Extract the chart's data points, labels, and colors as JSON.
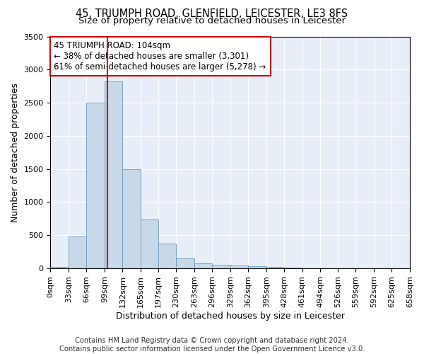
{
  "title_line1": "45, TRIUMPH ROAD, GLENFIELD, LEICESTER, LE3 8FS",
  "title_line2": "Size of property relative to detached houses in Leicester",
  "xlabel": "Distribution of detached houses by size in Leicester",
  "ylabel": "Number of detached properties",
  "bar_color": "#c8d8e8",
  "bar_edge_color": "#6699bb",
  "property_line_x": 104,
  "property_line_color": "#cc0000",
  "annotation_text": "45 TRIUMPH ROAD: 104sqm\n← 38% of detached houses are smaller (3,301)\n61% of semi-detached houses are larger (5,278) →",
  "annotation_box_color": "#ffffff",
  "annotation_box_edge_color": "#cc0000",
  "bin_edges": [
    0,
    33,
    66,
    99,
    132,
    165,
    197,
    230,
    263,
    296,
    329,
    362,
    395,
    428,
    461,
    494,
    526,
    559,
    592,
    625,
    658
  ],
  "bar_heights": [
    20,
    480,
    2500,
    2820,
    1500,
    740,
    380,
    155,
    80,
    55,
    40,
    35,
    20,
    10,
    5,
    3,
    2,
    1,
    1,
    0
  ],
  "ylim": [
    0,
    3500
  ],
  "yticks": [
    0,
    500,
    1000,
    1500,
    2000,
    2500,
    3000,
    3500
  ],
  "background_color": "#e8eef8",
  "footer_line1": "Contains HM Land Registry data © Crown copyright and database right 2024.",
  "footer_line2": "Contains public sector information licensed under the Open Government Licence v3.0.",
  "title_fontsize": 10.5,
  "subtitle_fontsize": 9.5,
  "ylabel_fontsize": 9,
  "xlabel_fontsize": 9,
  "tick_fontsize": 8,
  "annotation_fontsize": 8.5,
  "footer_fontsize": 7.2
}
